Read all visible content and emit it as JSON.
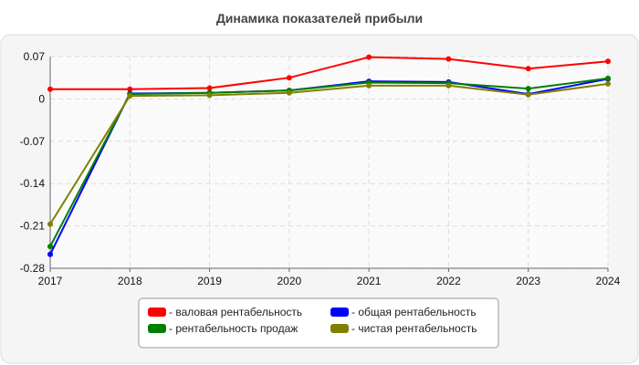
{
  "chart_data": {
    "type": "line",
    "title": "Динамика показателей прибыли",
    "categories": [
      "2017",
      "2018",
      "2019",
      "2020",
      "2021",
      "2022",
      "2023",
      "2024"
    ],
    "y_ticks": [
      0.07,
      0,
      -0.07,
      -0.14,
      -0.21,
      -0.28
    ],
    "y_tick_labels": [
      "0.07",
      "0",
      "-0.07",
      "-0.14",
      "-0.21",
      "-0.28"
    ],
    "ylim": [
      -0.28,
      0.07
    ],
    "grid": true,
    "legend_position": "bottom",
    "series": [
      {
        "name": "- валовая рентабельность",
        "color": "#ff0000",
        "values": [
          0.016,
          0.016,
          0.018,
          0.035,
          0.069,
          0.066,
          0.05,
          0.062
        ]
      },
      {
        "name": "- общая рентабельность",
        "color": "#0000ff",
        "values": [
          -0.257,
          0.009,
          0.01,
          0.014,
          0.029,
          0.028,
          0.008,
          0.033
        ]
      },
      {
        "name": "- рентабельность продаж",
        "color": "#008000",
        "values": [
          -0.244,
          0.008,
          0.01,
          0.014,
          0.027,
          0.026,
          0.017,
          0.034
        ]
      },
      {
        "name": "- чистая рентабельность",
        "color": "#808000",
        "values": [
          -0.207,
          0.005,
          0.006,
          0.01,
          0.022,
          0.022,
          0.007,
          0.025
        ]
      }
    ]
  }
}
